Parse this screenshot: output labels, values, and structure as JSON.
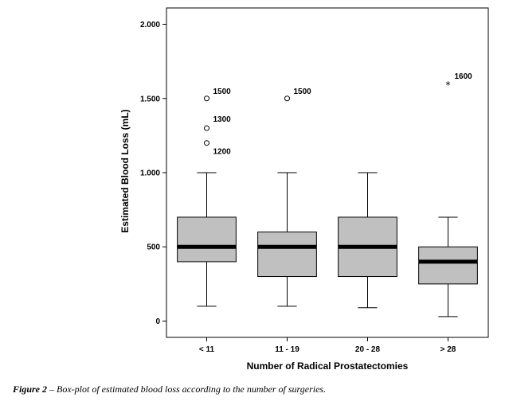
{
  "caption": {
    "label": "Figure 2",
    "separator": " – ",
    "text": "Box-plot of estimated blood loss according to the number of surgeries."
  },
  "chart_data": {
    "type": "box",
    "xlabel": "Number of Radical Prostatectomies",
    "ylabel": "Estimated Blood Loss (mL)",
    "ylim": [
      -110,
      2110
    ],
    "yticks": [
      0,
      500,
      1000,
      1500,
      2000
    ],
    "ytick_labels": [
      "0",
      "500",
      "1.000",
      "1.500",
      "2.000"
    ],
    "grid": false,
    "box_color": "#c0c0c0",
    "categories": [
      "< 11",
      "11 - 19",
      "20 - 28",
      "> 28"
    ],
    "boxes": [
      {
        "category": "< 11",
        "min": 100,
        "q1": 400,
        "median": 500,
        "q3": 700,
        "max": 1000,
        "outliers": [
          {
            "value": 1500,
            "label": "1500",
            "marker": "circle"
          },
          {
            "value": 1300,
            "label": "1300",
            "marker": "circle"
          },
          {
            "value": 1200,
            "label": "1200",
            "marker": "circle"
          }
        ]
      },
      {
        "category": "11 - 19",
        "min": 100,
        "q1": 300,
        "median": 500,
        "q3": 600,
        "max": 1000,
        "outliers": [
          {
            "value": 1500,
            "label": "1500",
            "marker": "circle"
          }
        ]
      },
      {
        "category": "20 - 28",
        "min": 90,
        "q1": 300,
        "median": 500,
        "q3": 700,
        "max": 1000,
        "outliers": []
      },
      {
        "category": "> 28",
        "min": 30,
        "q1": 250,
        "median": 400,
        "q3": 500,
        "max": 700,
        "outliers": [
          {
            "value": 1600,
            "label": "1600",
            "marker": "star"
          }
        ]
      }
    ]
  }
}
